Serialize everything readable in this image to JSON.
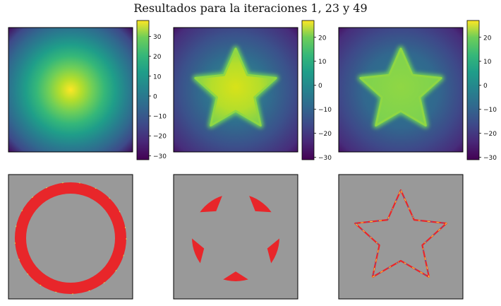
{
  "title": "Resultados para la iteraciones 1, 23 y 49",
  "colormap": "viridis",
  "colors": {
    "band": "#e8262a",
    "background": "#999999",
    "edge_yellow": "#f2e53b",
    "edge_blue": "#3b5bbf"
  },
  "chart_data": [
    {
      "type": "heatmap",
      "iteration": 1,
      "shape": "radial-gradient",
      "colorbar_ticks": [
        30,
        20,
        10,
        0,
        -10,
        -20,
        -30
      ],
      "colorbar_range": [
        -32,
        38
      ]
    },
    {
      "type": "heatmap",
      "iteration": 23,
      "shape": "star",
      "colorbar_ticks": [
        20,
        10,
        0,
        -10,
        -20,
        -30
      ],
      "colorbar_range": [
        -31,
        27
      ]
    },
    {
      "type": "heatmap",
      "iteration": 49,
      "shape": "star",
      "colorbar_ticks": [
        20,
        10,
        0,
        -10,
        -20,
        -30
      ],
      "colorbar_range": [
        -31,
        27
      ]
    },
    {
      "type": "heatmap",
      "iteration": 1,
      "shape": "ring"
    },
    {
      "type": "heatmap",
      "iteration": 23,
      "shape": "star-band"
    },
    {
      "type": "heatmap",
      "iteration": 49,
      "shape": "star-outline"
    }
  ]
}
